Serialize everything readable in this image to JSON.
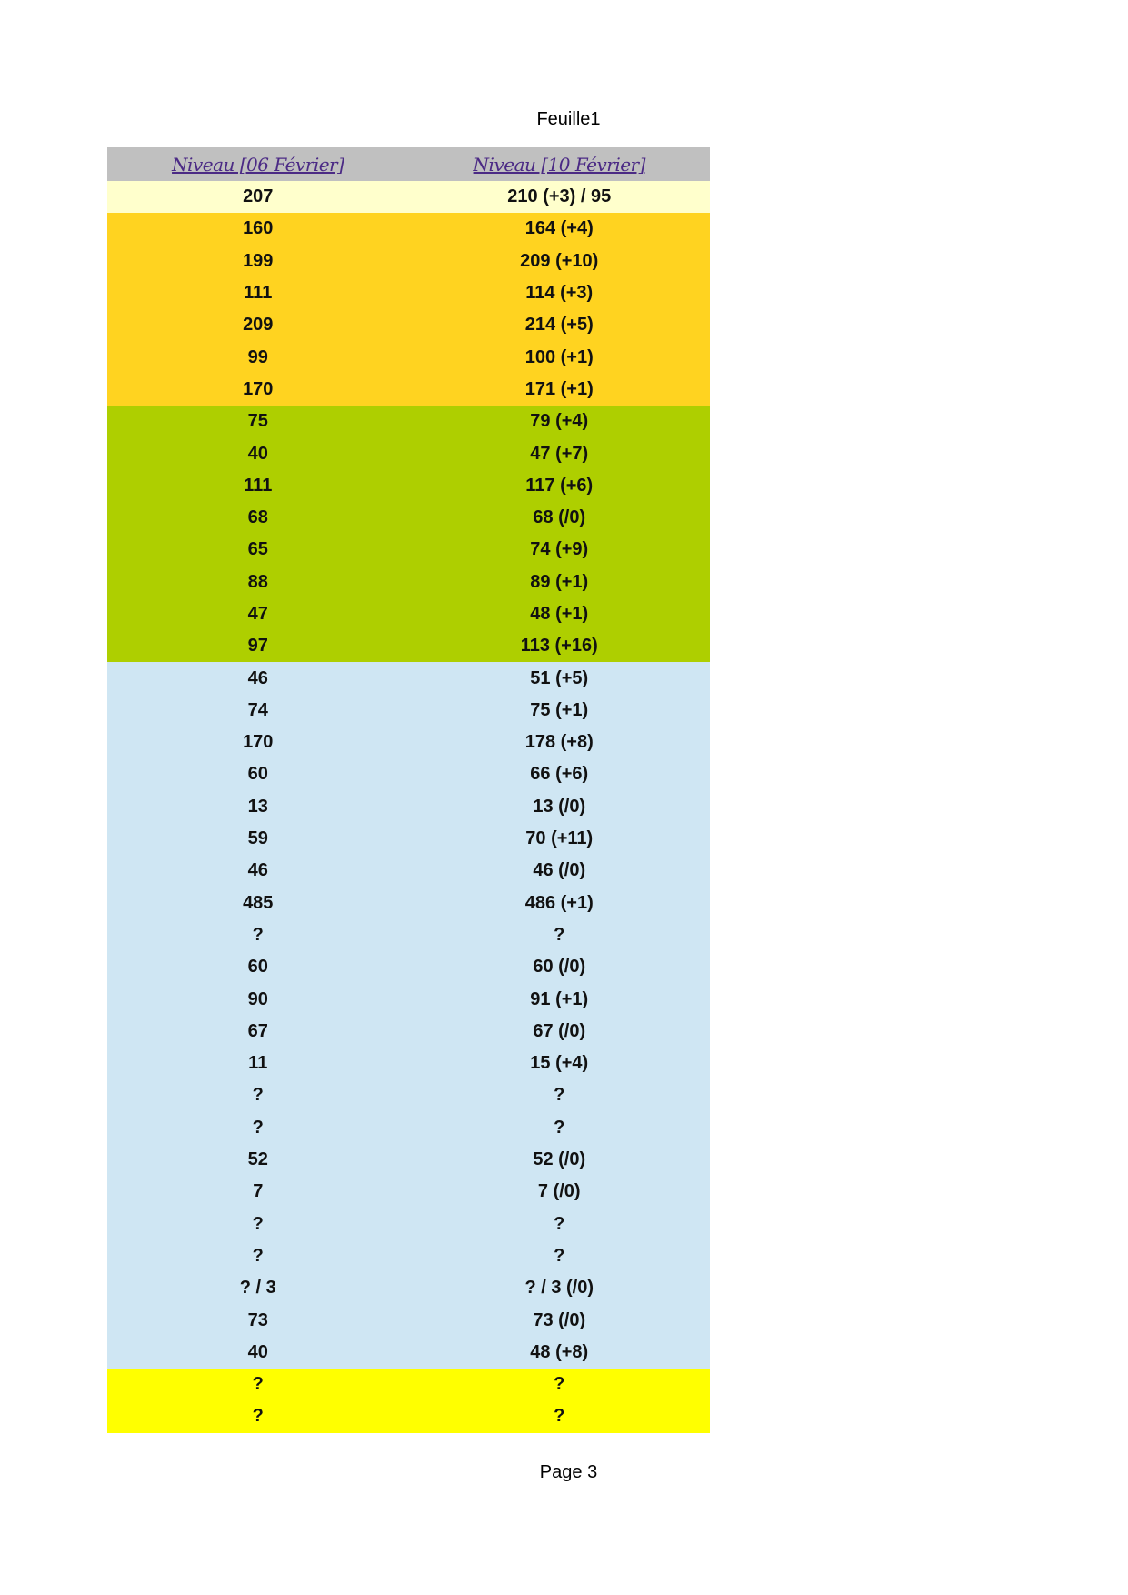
{
  "sheet_title": "Feuille1",
  "page_label": "Page 3",
  "colors": {
    "header": "#c0c0c0",
    "header_text": "#4b2a85",
    "pale_yellow": "#ffffcc",
    "orange": "#ffd320",
    "green": "#aecf00",
    "light_blue": "#cfe6f3",
    "yellow": "#ffff00"
  },
  "table": {
    "headers": [
      "Niveau [06 Février]",
      "Niveau [10 Février]"
    ],
    "rows": [
      {
        "a": "207",
        "b": "210 (+3) / 95",
        "color": "pale_yellow"
      },
      {
        "a": "160",
        "b": "164 (+4)",
        "color": "orange"
      },
      {
        "a": "199",
        "b": "209 (+10)",
        "color": "orange"
      },
      {
        "a": "111",
        "b": "114 (+3)",
        "color": "orange"
      },
      {
        "a": "209",
        "b": "214 (+5)",
        "color": "orange"
      },
      {
        "a": "99",
        "b": "100 (+1)",
        "color": "orange"
      },
      {
        "a": "170",
        "b": "171 (+1)",
        "color": "orange"
      },
      {
        "a": "75",
        "b": "79 (+4)",
        "color": "green"
      },
      {
        "a": "40",
        "b": "47 (+7)",
        "color": "green"
      },
      {
        "a": "111",
        "b": "117 (+6)",
        "color": "green"
      },
      {
        "a": "68",
        "b": "68 (/0)",
        "color": "green"
      },
      {
        "a": "65",
        "b": "74 (+9)",
        "color": "green"
      },
      {
        "a": "88",
        "b": "89 (+1)",
        "color": "green"
      },
      {
        "a": "47",
        "b": "48 (+1)",
        "color": "green"
      },
      {
        "a": "97",
        "b": "113 (+16)",
        "color": "green"
      },
      {
        "a": "46",
        "b": "51 (+5)",
        "color": "light_blue"
      },
      {
        "a": "74",
        "b": "75 (+1)",
        "color": "light_blue"
      },
      {
        "a": "170",
        "b": "178 (+8)",
        "color": "light_blue"
      },
      {
        "a": "60",
        "b": "66 (+6)",
        "color": "light_blue"
      },
      {
        "a": "13",
        "b": "13 (/0)",
        "color": "light_blue"
      },
      {
        "a": "59",
        "b": "70 (+11)",
        "color": "light_blue"
      },
      {
        "a": "46",
        "b": "46 (/0)",
        "color": "light_blue"
      },
      {
        "a": "485",
        "b": "486 (+1)",
        "color": "light_blue"
      },
      {
        "a": "?",
        "b": "?",
        "color": "light_blue"
      },
      {
        "a": "60",
        "b": "60 (/0)",
        "color": "light_blue"
      },
      {
        "a": "90",
        "b": "91 (+1)",
        "color": "light_blue"
      },
      {
        "a": "67",
        "b": "67 (/0)",
        "color": "light_blue"
      },
      {
        "a": "11",
        "b": "15 (+4)",
        "color": "light_blue"
      },
      {
        "a": "?",
        "b": "?",
        "color": "light_blue"
      },
      {
        "a": "?",
        "b": "?",
        "color": "light_blue"
      },
      {
        "a": "52",
        "b": "52 (/0)",
        "color": "light_blue"
      },
      {
        "a": "7",
        "b": "7 (/0)",
        "color": "light_blue"
      },
      {
        "a": "?",
        "b": "?",
        "color": "light_blue"
      },
      {
        "a": "?",
        "b": "?",
        "color": "light_blue"
      },
      {
        "a": "? / 3",
        "b": "? / 3 (/0)",
        "color": "light_blue"
      },
      {
        "a": "73",
        "b": "73 (/0)",
        "color": "light_blue"
      },
      {
        "a": "40",
        "b": "48 (+8)",
        "color": "light_blue"
      },
      {
        "a": "?",
        "b": "?",
        "color": "yellow"
      },
      {
        "a": "?",
        "b": "?",
        "color": "yellow"
      }
    ]
  }
}
